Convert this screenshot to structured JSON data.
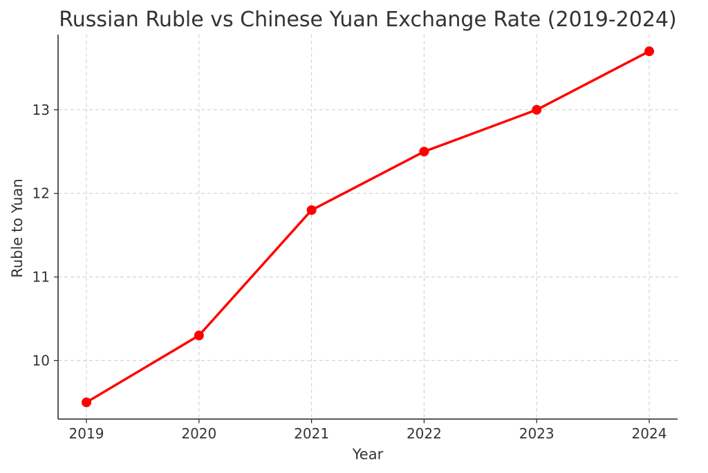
{
  "chart_data": {
    "type": "line",
    "title": "Russian Ruble vs Chinese Yuan Exchange Rate (2019-2024)",
    "xlabel": "Year",
    "ylabel": "Ruble to Yuan",
    "x": [
      "2019",
      "2020",
      "2021",
      "2022",
      "2023",
      "2024"
    ],
    "series": [
      {
        "values": [
          9.5,
          10.3,
          11.8,
          12.5,
          13.0,
          13.7
        ],
        "color": "#ff0000",
        "marker": "circle"
      }
    ],
    "y_ticks": [
      10,
      11,
      12,
      13
    ],
    "ylim": [
      9.3,
      13.9
    ],
    "grid": true,
    "legend": "none"
  }
}
